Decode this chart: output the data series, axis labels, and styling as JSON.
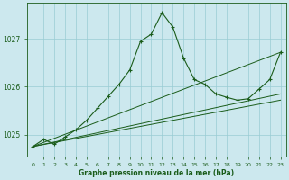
{
  "title": "Graphe pression niveau de la mer (hPa)",
  "bg_color": "#cce8ee",
  "grid_color": "#99ccd4",
  "line_color": "#1a5c1a",
  "xlim": [
    -0.5,
    23.5
  ],
  "ylim": [
    1024.55,
    1027.75
  ],
  "yticks": [
    1025,
    1026,
    1027
  ],
  "xticks": [
    0,
    1,
    2,
    3,
    4,
    5,
    6,
    7,
    8,
    9,
    10,
    11,
    12,
    13,
    14,
    15,
    16,
    17,
    18,
    19,
    20,
    21,
    22,
    23
  ],
  "hours": [
    0,
    1,
    2,
    3,
    4,
    5,
    6,
    7,
    8,
    9,
    10,
    11,
    12,
    13,
    14,
    15,
    16,
    17,
    18,
    19,
    20,
    21,
    22,
    23
  ],
  "pressure": [
    1024.75,
    1024.9,
    1024.8,
    1024.95,
    1025.1,
    1025.3,
    1025.55,
    1025.8,
    1026.05,
    1026.35,
    1026.95,
    1027.1,
    1027.55,
    1027.25,
    1026.6,
    1026.15,
    1026.05,
    1025.85,
    1025.78,
    1025.72,
    1025.75,
    1025.95,
    1026.15,
    1026.72
  ],
  "line_a": [
    [
      0,
      23
    ],
    [
      1024.75,
      1025.72
    ]
  ],
  "line_b": [
    [
      0,
      23
    ],
    [
      1024.75,
      1025.85
    ]
  ],
  "line_c": [
    [
      0,
      23
    ],
    [
      1024.75,
      1026.72
    ]
  ],
  "figsize": [
    3.2,
    2.0
  ],
  "dpi": 100
}
